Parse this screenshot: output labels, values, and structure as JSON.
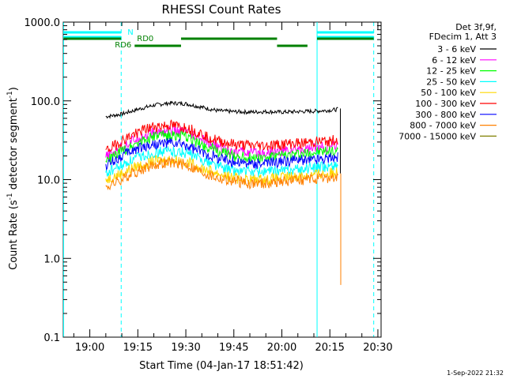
{
  "chart_data": {
    "type": "line",
    "title": "RHESSI Count Rates",
    "xlabel": "Start Time (04-Jan-17 18:51:42)",
    "ylabel_main": "Count Rate (s",
    "ylabel_sup": "-1",
    "ylabel_tail": " detector segment",
    "ylabel_close": ")",
    "yscale": "log",
    "ylim": [
      0.1,
      1000
    ],
    "xlim_minutes": [
      -8.3,
      91
    ],
    "x_ticks": [
      {
        "minute": 0,
        "label": "19:00"
      },
      {
        "minute": 15,
        "label": "19:15"
      },
      {
        "minute": 30,
        "label": "19:30"
      },
      {
        "minute": 45,
        "label": "19:45"
      },
      {
        "minute": 60,
        "label": "20:00"
      },
      {
        "minute": 75,
        "label": "20:15"
      },
      {
        "minute": 90,
        "label": "20:30"
      }
    ],
    "y_ticks": [
      {
        "value": 1000,
        "label": "1000.0"
      },
      {
        "value": 100,
        "label": "100.0"
      },
      {
        "value": 10,
        "label": "10.0"
      },
      {
        "value": 1,
        "label": "1.0"
      },
      {
        "value": 0.1,
        "label": "0.1"
      }
    ],
    "legend_header": [
      "Det 3f,9f,",
      "FDecim 1, Att 3"
    ],
    "series": [
      {
        "name": "3 - 6 keV",
        "color": "#000000",
        "x": [
          5,
          10,
          15,
          20,
          25,
          30,
          35,
          40,
          45,
          50,
          55,
          60,
          65,
          70,
          75,
          77.5
        ],
        "y": [
          63,
          68,
          78,
          88,
          94,
          92,
          83,
          75,
          73,
          72,
          73,
          72,
          73,
          74,
          76,
          78
        ]
      },
      {
        "name": "6 - 12 keV",
        "color": "#ff00ff",
        "x": [
          5,
          10,
          15,
          20,
          25,
          30,
          35,
          40,
          45,
          50,
          55,
          60,
          65,
          70,
          75,
          77.5
        ],
        "y": [
          19,
          26,
          34,
          40,
          42,
          40,
          32,
          26,
          23,
          22,
          22,
          23,
          24,
          25,
          26,
          27
        ]
      },
      {
        "name": "12 - 25 keV",
        "color": "#00ff00",
        "x": [
          5,
          10,
          15,
          20,
          25,
          30,
          35,
          40,
          45,
          50,
          55,
          60,
          65,
          70,
          75,
          77.5
        ],
        "y": [
          17,
          23,
          30,
          35,
          37,
          35,
          28,
          23,
          20,
          19,
          19,
          20,
          21,
          22,
          23,
          24
        ]
      },
      {
        "name": "25 - 50 keV",
        "color": "#00ffff",
        "x": [
          5,
          10,
          15,
          20,
          25,
          30,
          35,
          40,
          45,
          50,
          55,
          60,
          65,
          70,
          75,
          77.5
        ],
        "y": [
          12,
          15,
          19,
          22,
          23,
          22,
          18,
          15,
          13,
          12.5,
          12.5,
          13,
          13.5,
          14,
          15,
          15.5
        ]
      },
      {
        "name": "50 - 100 keV",
        "color": "#ffd700",
        "x": [
          5,
          10,
          15,
          20,
          25,
          30,
          35,
          40,
          45,
          50,
          55,
          60,
          65,
          70,
          75,
          77.5
        ],
        "y": [
          10,
          12,
          15,
          17,
          18,
          17,
          14,
          12,
          10.5,
          10,
          10,
          10.5,
          11,
          11.5,
          12,
          12.5
        ]
      },
      {
        "name": "100 - 300 keV",
        "color": "#ff0000",
        "x": [
          5,
          10,
          15,
          20,
          25,
          30,
          35,
          40,
          45,
          50,
          55,
          60,
          65,
          70,
          75,
          77.5
        ],
        "y": [
          23,
          31,
          40,
          47,
          49,
          46,
          38,
          31,
          28,
          27,
          27,
          28,
          29,
          30,
          31,
          32
        ]
      },
      {
        "name": "300 - 800 keV",
        "color": "#0000ff",
        "x": [
          5,
          10,
          15,
          20,
          25,
          30,
          35,
          40,
          45,
          50,
          55,
          60,
          65,
          70,
          75,
          77.5
        ],
        "y": [
          15,
          20,
          25,
          28,
          29,
          27,
          22,
          19,
          17,
          16,
          16,
          17,
          17.5,
          18,
          19,
          19.5
        ]
      },
      {
        "name": "800 - 7000 keV",
        "color": "#ff8000",
        "x": [
          5,
          10,
          15,
          20,
          25,
          30,
          35,
          40,
          45,
          50,
          55,
          60,
          65,
          70,
          75,
          77.5
        ],
        "y": [
          8,
          10,
          13,
          15.5,
          16.5,
          15.5,
          12.5,
          10.5,
          9.5,
          9,
          9,
          9.5,
          10,
          10,
          10.5,
          10.5
        ]
      },
      {
        "name": "7000 - 15000 keV",
        "color": "#808000",
        "x": [],
        "y": []
      }
    ],
    "drop_line": {
      "color": "#ff8000",
      "x": 78.4,
      "y_top": 12,
      "y_bottom": 0.46
    },
    "vertical_markers": [
      {
        "minute": -8.2,
        "color": "#00ffff",
        "style": "solid"
      },
      {
        "minute": 9.8,
        "color": "#00ffff",
        "style": "dashed"
      },
      {
        "minute": 71,
        "color": "#00ffff",
        "style": "solid"
      },
      {
        "minute": 88.7,
        "color": "#00ffff",
        "style": "dashed"
      }
    ],
    "attenuator_bars": [
      {
        "label": "N",
        "color": "#00ffff",
        "segments": [
          [
            -8.2,
            9.8
          ],
          [
            71,
            88.7
          ]
        ]
      },
      {
        "label": "RD0",
        "color": "#008000",
        "segments": [
          [
            -8.2,
            9.8
          ],
          [
            28.5,
            58.5
          ],
          [
            71,
            88.7
          ]
        ]
      },
      {
        "label": "RD6",
        "color": "#008000",
        "segments": [
          [
            14,
            28.5
          ],
          [
            58.5,
            68
          ]
        ]
      }
    ]
  },
  "footer_timestamp": "1-Sep-2022 21:32"
}
